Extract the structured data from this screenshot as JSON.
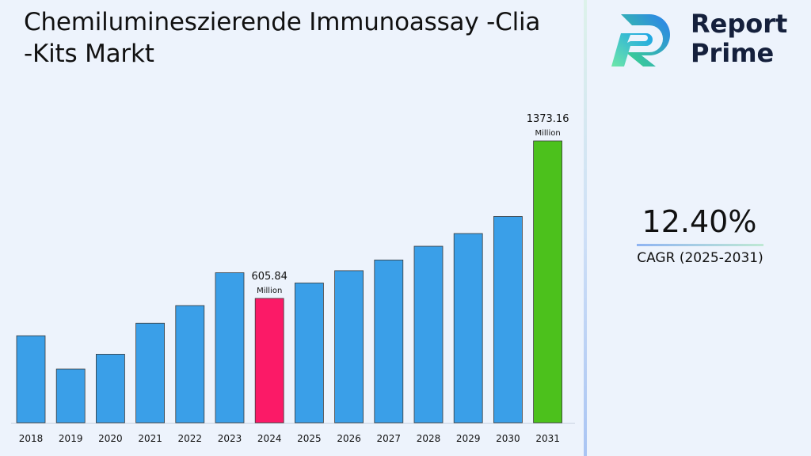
{
  "header": {
    "title_line1": "Chemilumineszierende Immunoassay -Clia",
    "title_line2": "-Kits Markt"
  },
  "brand": {
    "name_line1": "Report",
    "name_line2": "Prime"
  },
  "summary": {
    "cagr_value": "12.40%",
    "cagr_label": "CAGR (2025-2031)"
  },
  "colors": {
    "bar_default": "#3a9fe8",
    "bar_base_year": "#fb1a67",
    "bar_final_year": "#4cc11c"
  },
  "chart_data": {
    "type": "bar",
    "categories": [
      "2018",
      "2019",
      "2020",
      "2021",
      "2022",
      "2023",
      "2024",
      "2025",
      "2026",
      "2027",
      "2028",
      "2029",
      "2030",
      "2031"
    ],
    "values": [
      424,
      262,
      334,
      485,
      571,
      731,
      605.84,
      681,
      741,
      793,
      860,
      922,
      1005,
      1373.16
    ],
    "ylim": [
      0,
      1373.16
    ],
    "unit": "Million",
    "annotations": [
      {
        "category": "2024",
        "value": "605.84",
        "unit": "Million"
      },
      {
        "category": "2031",
        "value": "1373.16",
        "unit": "Million"
      }
    ],
    "highlight": {
      "2024": "bar_base_year",
      "2031": "bar_final_year"
    },
    "title": "",
    "xlabel": "",
    "ylabel": "",
    "grid": false,
    "legend": "none"
  }
}
